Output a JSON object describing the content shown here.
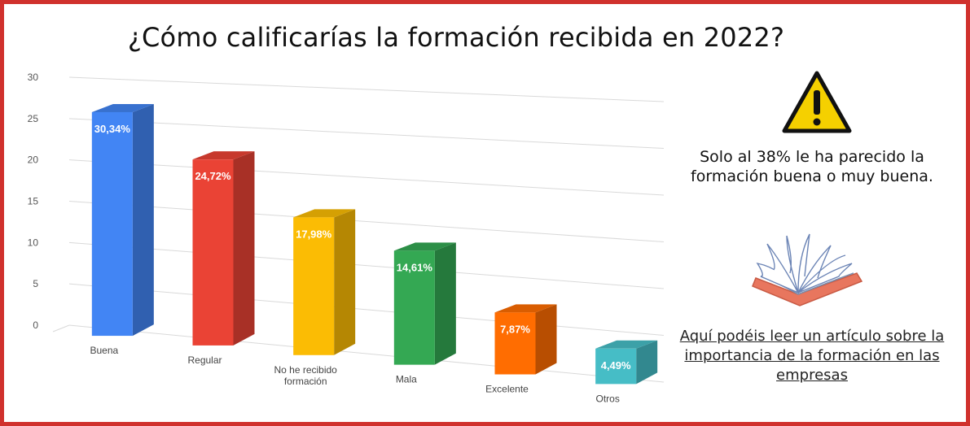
{
  "title": "¿Cómo calificarías la formación recibida en 2022?",
  "side": {
    "note": "Solo al 38% le ha parecido la formación buena o muy buena.",
    "link_text": "Aquí podéis leer un artículo sobre la importancia de la formación en las empresas"
  },
  "chart_data": {
    "type": "bar",
    "style": "3d",
    "title": "¿Cómo calificarías la formación recibida en 2022?",
    "categories": [
      "Buena",
      "Regular",
      "No he recibido formación",
      "Mala",
      "Excelente",
      "Otros"
    ],
    "values": [
      27,
      22,
      16,
      13,
      7,
      4
    ],
    "data_labels": [
      "30,34%",
      "24,72%",
      "17,98%",
      "14,61%",
      "7,87%",
      "4,49%"
    ],
    "colors": [
      "#4285f4",
      "#ea4335",
      "#fbbc04",
      "#34a853",
      "#ff6d01",
      "#46bdc6"
    ],
    "y_ticks": [
      "0",
      "5",
      "10",
      "15",
      "20",
      "25",
      "30"
    ],
    "ylim": [
      0,
      30
    ],
    "xlabel": "",
    "ylabel": ""
  }
}
